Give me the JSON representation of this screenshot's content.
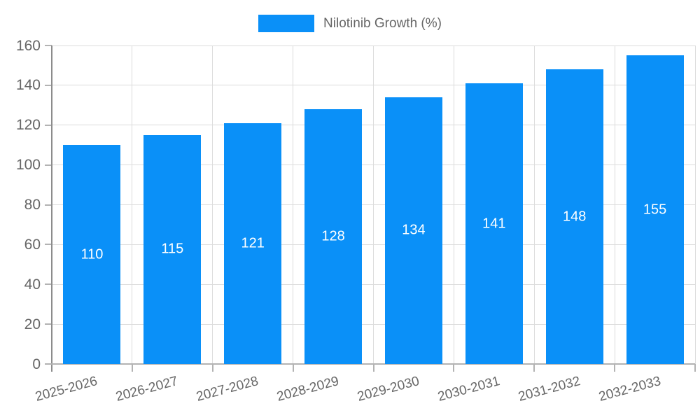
{
  "legend": {
    "label": "Nilotinib Growth (%)"
  },
  "chart_data": {
    "type": "bar",
    "title": "",
    "xlabel": "",
    "ylabel": "",
    "categories": [
      "2025-2026",
      "2026-2027",
      "2027-2028",
      "2028-2029",
      "2029-2030",
      "2030-2031",
      "2031-2032",
      "2032-2033"
    ],
    "series": [
      {
        "name": "Nilotinib Growth (%)",
        "values": [
          110,
          115,
          121,
          128,
          134,
          141,
          148,
          155
        ]
      }
    ],
    "ylim": [
      0,
      160
    ],
    "ytick_step": 20,
    "grid": true,
    "legend_position": "top",
    "colors": {
      "bar": "#0a90f8",
      "bar_label": "#ffffff",
      "axis_text": "#666666",
      "grid_line": "#dcdcdc",
      "y_axis_line": "#8c8c8c",
      "x_axis_line": "#b3b3b3",
      "tick": "#b3b3b3",
      "background": "#ffffff"
    }
  }
}
